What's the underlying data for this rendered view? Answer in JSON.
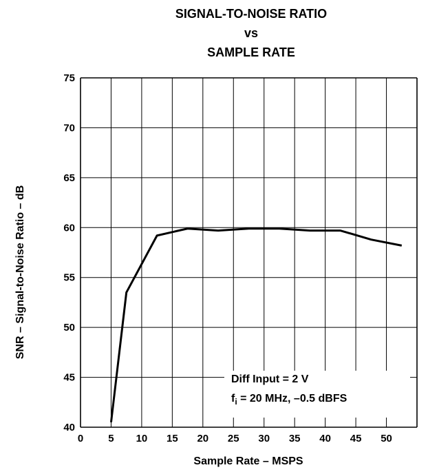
{
  "chart_data": {
    "type": "line",
    "title_lines": [
      "SIGNAL-TO-NOISE RATIO",
      "vs",
      "SAMPLE RATE"
    ],
    "xlabel": "Sample Rate – MSPS",
    "ylabel": "SNR – Signal-to-Noise Ratio – dB",
    "xlim": [
      0,
      55
    ],
    "ylim": [
      40,
      75
    ],
    "xticks": [
      0,
      5,
      10,
      15,
      20,
      25,
      30,
      35,
      40,
      45,
      50
    ],
    "yticks": [
      40,
      45,
      50,
      55,
      60,
      65,
      70,
      75
    ],
    "grid": true,
    "series": [
      {
        "x": [
          5,
          7.5,
          12.5,
          17.5,
          22.5,
          27.5,
          32.5,
          37.5,
          42.5,
          47.5,
          52.5
        ],
        "values": [
          40.5,
          53.5,
          59.2,
          59.9,
          59.7,
          59.9,
          59.9,
          59.7,
          59.7,
          58.8,
          58.2
        ]
      }
    ],
    "annotation": {
      "line1": "Diff Input = 2 V",
      "line2_prefix": "f",
      "line2_subscript": "i",
      "line2_suffix": " = 20 MHz, –0.5 dBFS"
    }
  }
}
